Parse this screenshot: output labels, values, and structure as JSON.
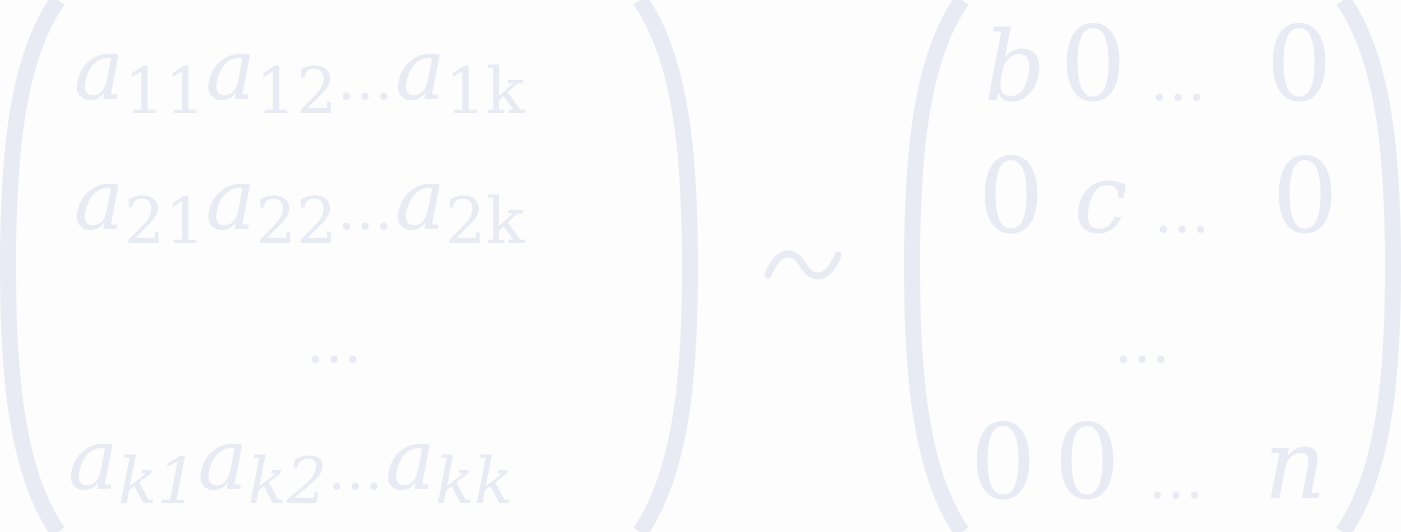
{
  "left_matrix": {
    "rows": [
      {
        "a1": "a",
        "s1": "11",
        "a2": "a",
        "s2": "12",
        "dots": "…",
        "a3": "a",
        "s3": "1k"
      },
      {
        "a1": "a",
        "s1": "21",
        "a2": "a",
        "s2": "22",
        "dots": "…",
        "a3": "a",
        "s3": "2k"
      },
      {
        "a1": "a",
        "s1": "k1",
        "a2": "a",
        "s2": "k2",
        "dots": "…",
        "a3": "a",
        "s3": "kk"
      }
    ],
    "vdots": "…"
  },
  "relation": "∼",
  "right_matrix": {
    "rows": [
      {
        "c1": "b",
        "c2": "0",
        "dots": "…",
        "c3": "0"
      },
      {
        "c1": "0",
        "c2": "c",
        "dots": "…",
        "c3": "0"
      },
      {
        "c1": "0",
        "c2": "0",
        "dots": "…",
        "c3": "n"
      }
    ],
    "vdots": "…"
  },
  "colors": {
    "background": "#fdfdfe",
    "ink": "#e8ebf4"
  }
}
